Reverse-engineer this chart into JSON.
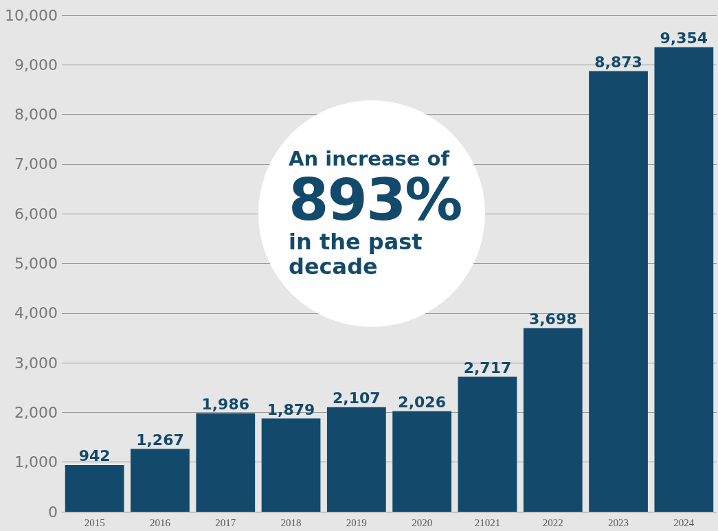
{
  "chart_data": {
    "type": "bar",
    "categories": [
      "2015",
      "2016",
      "2017",
      "2018",
      "2019",
      "2020",
      "21021",
      "2022",
      "2023",
      "2024"
    ],
    "values": [
      942,
      1267,
      1986,
      1879,
      2107,
      2026,
      2717,
      3698,
      8873,
      9354
    ],
    "color": "#134a6b",
    "ylim": [
      0,
      10000
    ],
    "yticks": [
      0,
      {
        "value": 1000,
        "label": "1,000"
      },
      {
        "value": 2000,
        "label": "2,000"
      },
      {
        "value": 3000,
        "label": "3,000"
      },
      {
        "value": 4000,
        "label": "4,000"
      },
      {
        "value": 5000,
        "label": "5,000"
      },
      {
        "value": 6000,
        "label": "6,000"
      },
      {
        "value": 7000,
        "label": "7,000"
      },
      {
        "value": 8000,
        "label": "8,000"
      },
      {
        "value": 9000,
        "label": "9,000"
      },
      {
        "value": 10000,
        "label": "10,000"
      }
    ],
    "value_labels": [
      "942",
      "1,267",
      "1,986",
      "1,879",
      "2,107",
      "2,026",
      "2,717",
      "3,698",
      "8,873",
      "9,354"
    ],
    "grid": "y",
    "annotations": [
      "An increase of",
      "893%",
      "in the past decade"
    ]
  }
}
